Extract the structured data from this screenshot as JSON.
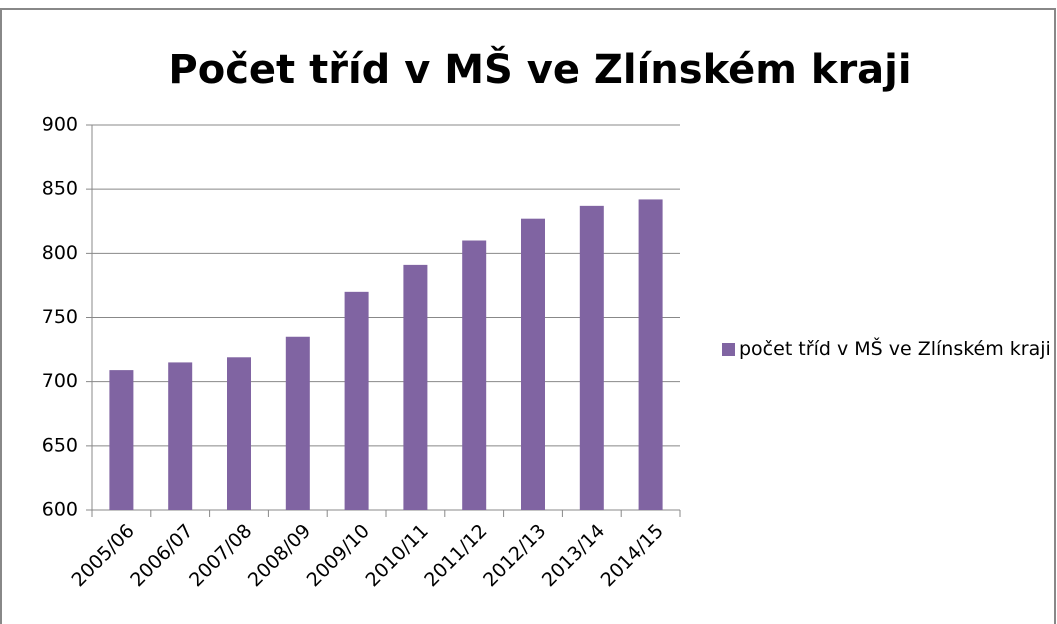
{
  "chart_data": {
    "type": "bar",
    "title": "Počet tříd v MŠ ve Zlínském kraji",
    "categories": [
      "2005/06",
      "2006/07",
      "2007/08",
      "2008/09",
      "2009/10",
      "2010/11",
      "2011/12",
      "2012/13",
      "2013/14",
      "2014/15"
    ],
    "series": [
      {
        "name": "počet tříd v MŠ ve Zlínském kraji",
        "color": "#8064a2",
        "values": [
          709,
          715,
          719,
          735,
          770,
          791,
          810,
          827,
          837,
          842
        ]
      }
    ],
    "ylim": [
      600,
      900
    ],
    "yticks": [
      600,
      650,
      700,
      750,
      800,
      850,
      900
    ],
    "grid": true,
    "legend": "right"
  }
}
